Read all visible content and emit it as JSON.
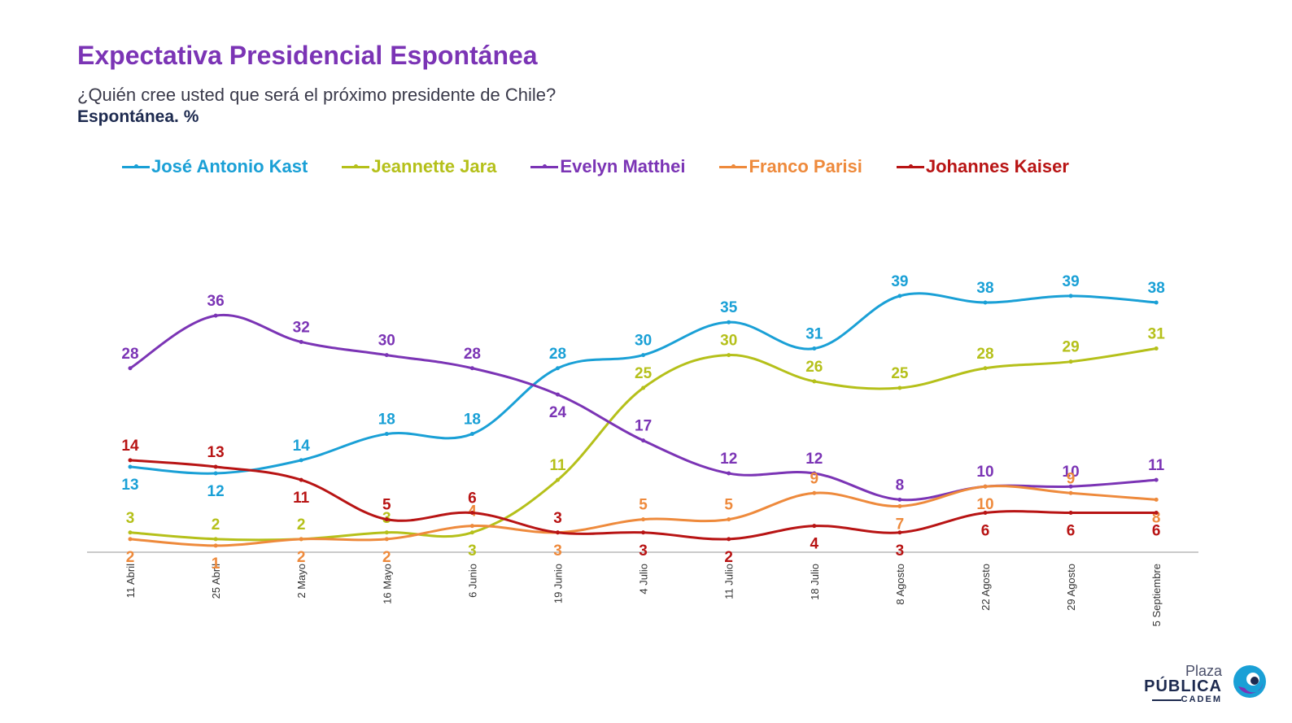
{
  "header": {
    "title": "Expectativa Presidencial Espontánea",
    "subtitle": "¿Quién cree usted que será el próximo presidente de Chile?",
    "subtitle2": "Espontánea. %"
  },
  "brand": {
    "plaza": "Plaza",
    "publica": "PÚBLICA",
    "cadem": "CADEM"
  },
  "chart_data": {
    "type": "line",
    "categories": [
      "11 Abril",
      "25 Abril",
      "2 Mayo",
      "16 Mayo",
      "6 Junio",
      "19 Junio",
      "4 Julio",
      "11 Julio",
      "18 Julio",
      "8 Agosto",
      "22 Agosto",
      "29 Agosto",
      "5 Septiembre"
    ],
    "ylim": [
      0,
      42
    ],
    "legend_position": "top",
    "grid": false,
    "smooth": true,
    "series": [
      {
        "name": "José Antonio Kast",
        "color": "#1aa0d6",
        "values": [
          13,
          12,
          14,
          18,
          18,
          28,
          30,
          35,
          31,
          39,
          38,
          39,
          38
        ]
      },
      {
        "name": "Jeannette Jara",
        "color": "#b5c01a",
        "values": [
          3,
          2,
          2,
          3,
          3,
          11,
          25,
          30,
          26,
          25,
          28,
          29,
          31
        ]
      },
      {
        "name": "Evelyn Matthei",
        "color": "#7b34b5",
        "values": [
          28,
          36,
          32,
          30,
          28,
          24,
          17,
          12,
          12,
          8,
          10,
          10,
          11
        ]
      },
      {
        "name": "Franco Parisi",
        "color": "#ee8a3c",
        "values": [
          2,
          1,
          2,
          2,
          4,
          3,
          5,
          5,
          9,
          7,
          10,
          9,
          8
        ]
      },
      {
        "name": "Johannes Kaiser",
        "color": "#b81414",
        "values": [
          14,
          13,
          11,
          5,
          6,
          3,
          3,
          2,
          4,
          3,
          6,
          6,
          6
        ]
      }
    ]
  }
}
